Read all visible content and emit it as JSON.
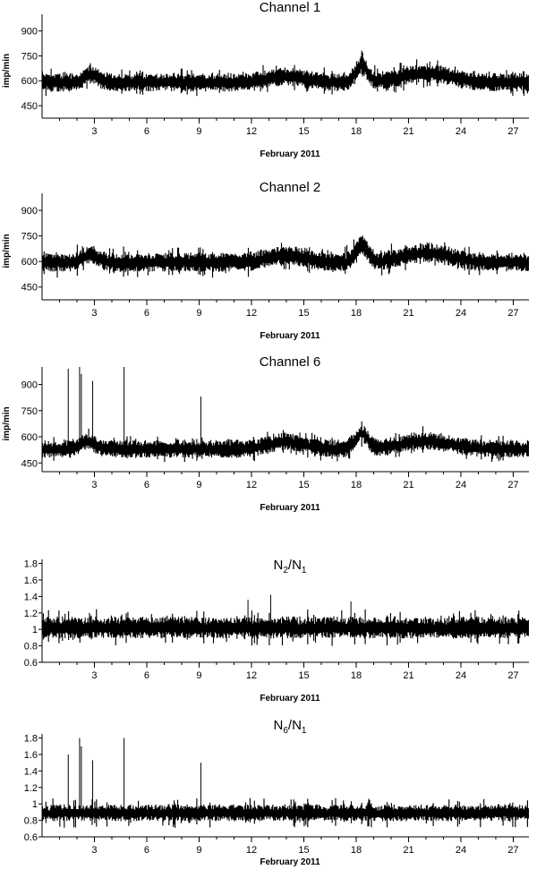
{
  "colors": {
    "trace": "#000000",
    "axis": "#000000",
    "background": "#ffffff"
  },
  "chart_data": [
    {
      "type": "line",
      "title": "Channel 1",
      "title_sub": "",
      "title_rest": "",
      "ylabel": "imp/min",
      "xlabel": "February 2011",
      "xlim": [
        0,
        27.9
      ],
      "ylim": [
        375,
        1000
      ],
      "xticks": [
        3,
        6,
        9,
        12,
        15,
        18,
        21,
        24,
        27
      ],
      "yticks": [
        450,
        600,
        750,
        900
      ],
      "series": [
        {
          "name": "",
          "baseline": 590,
          "noise": 55,
          "spike_noise": 90,
          "step_days": 0.05,
          "bumps": [
            {
              "day": 2.8,
              "amp": 45,
              "width": 0.6
            },
            {
              "day": 14.0,
              "amp": 35,
              "width": 1.5
            },
            {
              "day": 18.3,
              "amp": 100,
              "width": 0.5
            },
            {
              "day": 22.0,
              "amp": 55,
              "width": 2.0
            }
          ],
          "spikes": []
        }
      ]
    },
    {
      "type": "line",
      "title": "Channel 2",
      "title_sub": "",
      "title_rest": "",
      "ylabel": "imp/min",
      "xlabel": "February 2011",
      "xlim": [
        0,
        27.9
      ],
      "ylim": [
        375,
        1000
      ],
      "xticks": [
        3,
        6,
        9,
        12,
        15,
        18,
        21,
        24,
        27
      ],
      "yticks": [
        450,
        600,
        750,
        900
      ],
      "series": [
        {
          "name": "",
          "baseline": 595,
          "noise": 55,
          "spike_noise": 90,
          "step_days": 0.05,
          "bumps": [
            {
              "day": 2.8,
              "amp": 45,
              "width": 0.6
            },
            {
              "day": 14.0,
              "amp": 40,
              "width": 1.5
            },
            {
              "day": 18.3,
              "amp": 100,
              "width": 0.5
            },
            {
              "day": 22.0,
              "amp": 55,
              "width": 2.0
            }
          ],
          "spikes": []
        }
      ]
    },
    {
      "type": "line",
      "title": "Channel 6",
      "title_sub": "",
      "title_rest": "",
      "ylabel": "imp/min",
      "xlabel": "February 2011",
      "xlim": [
        0,
        27.9
      ],
      "ylim": [
        400,
        1000
      ],
      "xticks": [
        3,
        6,
        9,
        12,
        15,
        18,
        21,
        24,
        27
      ],
      "yticks": [
        450,
        600,
        750,
        900
      ],
      "series": [
        {
          "name": "",
          "baseline": 530,
          "noise": 50,
          "spike_noise": 80,
          "step_days": 0.05,
          "bumps": [
            {
              "day": 2.6,
              "amp": 45,
              "width": 0.6
            },
            {
              "day": 14.0,
              "amp": 40,
              "width": 1.5
            },
            {
              "day": 18.3,
              "amp": 90,
              "width": 0.5
            },
            {
              "day": 22.0,
              "amp": 45,
              "width": 2.0
            }
          ],
          "spikes": [
            {
              "day": 1.5,
              "value": 990
            },
            {
              "day": 2.15,
              "value": 1000
            },
            {
              "day": 2.25,
              "value": 960
            },
            {
              "day": 2.9,
              "value": 920
            },
            {
              "day": 4.7,
              "value": 1000
            },
            {
              "day": 9.1,
              "value": 830
            }
          ]
        }
      ]
    },
    {
      "type": "line",
      "title": "N",
      "title_sub": "2",
      "title_rest": "/N",
      "title_sub2": "1",
      "ylabel": "",
      "xlabel": "February 2011",
      "xlim": [
        0,
        27.9
      ],
      "ylim": [
        0.6,
        1.85
      ],
      "xticks": [
        3,
        6,
        9,
        12,
        15,
        18,
        21,
        24,
        27
      ],
      "yticks": [
        0.6,
        0.8,
        1.0,
        1.2,
        1.4,
        1.6,
        1.8
      ],
      "series": [
        {
          "name": "",
          "baseline": 1.02,
          "noise": 0.13,
          "spike_noise": 0.22,
          "step_days": 0.05,
          "bumps": [],
          "spikes": [
            {
              "day": 13.1,
              "value": 1.42
            },
            {
              "day": 11.8,
              "value": 1.36
            },
            {
              "day": 17.7,
              "value": 1.34
            }
          ]
        }
      ]
    },
    {
      "type": "line",
      "title": "N",
      "title_sub": "6",
      "title_rest": "/N",
      "title_sub2": "1",
      "ylabel": "",
      "xlabel": "February 2011",
      "xlim": [
        0,
        27.9
      ],
      "ylim": [
        0.6,
        1.85
      ],
      "xticks": [
        3,
        6,
        9,
        12,
        15,
        18,
        21,
        24,
        27
      ],
      "yticks": [
        0.6,
        0.8,
        1.0,
        1.2,
        1.4,
        1.6,
        1.8
      ],
      "series": [
        {
          "name": "",
          "baseline": 0.89,
          "noise": 0.1,
          "spike_noise": 0.18,
          "step_days": 0.05,
          "bumps": [],
          "spikes": [
            {
              "day": 1.5,
              "value": 1.6
            },
            {
              "day": 2.15,
              "value": 1.8
            },
            {
              "day": 2.25,
              "value": 1.7
            },
            {
              "day": 2.9,
              "value": 1.53
            },
            {
              "day": 4.7,
              "value": 1.8
            },
            {
              "day": 9.1,
              "value": 1.5
            }
          ]
        }
      ]
    }
  ]
}
